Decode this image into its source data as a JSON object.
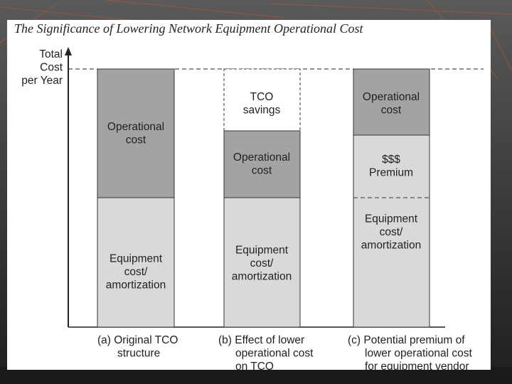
{
  "title": "The Significance of Lowering Network Equipment Operational Cost",
  "y_axis_label": [
    "Total",
    "Cost",
    "per Year"
  ],
  "panels": [
    {
      "caption": [
        "(a) Original TCO",
        "structure"
      ],
      "segments": [
        [
          "Operational",
          "cost"
        ],
        [
          "Equipment",
          "cost/",
          "amortization"
        ]
      ]
    },
    {
      "caption": [
        "(b) Effect of lower",
        "operational cost",
        "on TCO"
      ],
      "segments": [
        [
          "TCO",
          "savings"
        ],
        [
          "Operational",
          "cost"
        ],
        [
          "Equipment",
          "cost/",
          "amortization"
        ]
      ]
    },
    {
      "caption": [
        "(c) Potential premium of",
        "lower operational cost",
        "for equipment vendor"
      ],
      "segments": [
        [
          "Operational",
          "cost"
        ],
        [
          "$$$",
          "Premium"
        ],
        [
          "Equipment",
          "cost/",
          "amortization"
        ]
      ]
    }
  ]
}
